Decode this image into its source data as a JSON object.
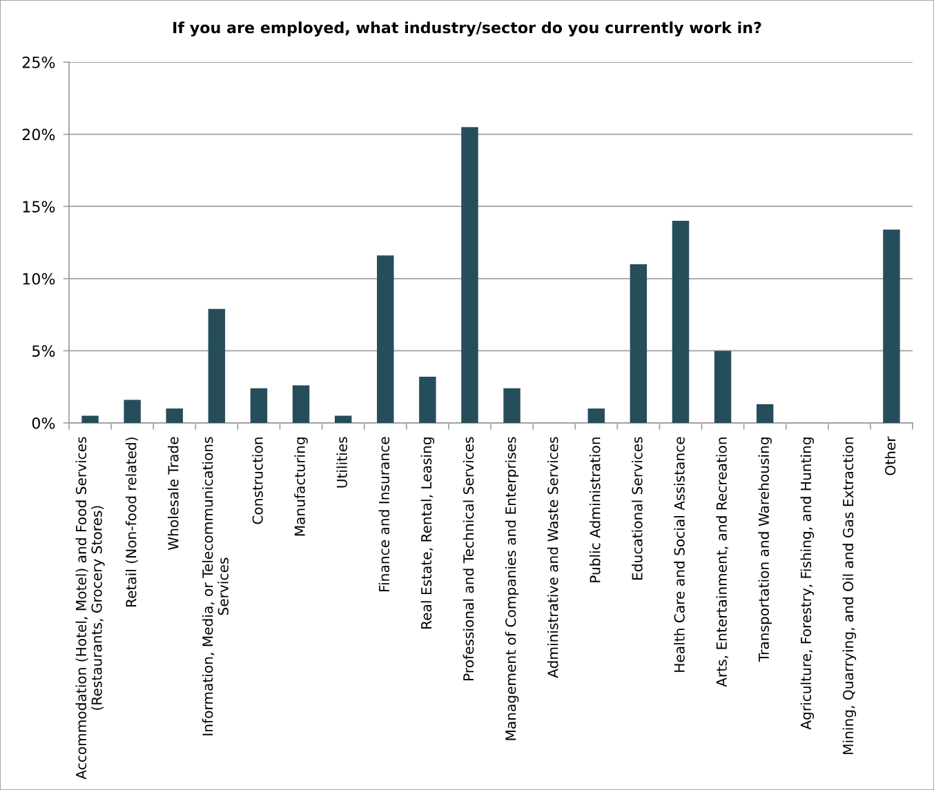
{
  "chart_data": {
    "type": "bar",
    "title": "If you are employed, what industry/sector do you currently work in?",
    "categories": [
      "Accommodation (Hotel, Motel) and Food Services\n(Restaurants, Grocery Stores)",
      "Retail (Non-food related)",
      "Wholesale Trade",
      "Information, Media, or Telecommunications\nServices",
      "Construction",
      "Manufacturing",
      "Utilities",
      "Finance and Insurance",
      "Real Estate, Rental, Leasing",
      "Professional and Technical Services",
      "Management of Companies and Enterprises",
      "Administrative and Waste Services",
      "Public Administration",
      "Educational Services",
      "Health Care and Social Assistance",
      "Arts, Entertainment, and Recreation",
      "Transportation and Warehousing",
      "Agriculture, Forestry, Fishing, and Hunting",
      "Mining, Quarrying, and Oil and Gas Extraction",
      "Other"
    ],
    "values": [
      0.5,
      1.6,
      1.0,
      7.9,
      2.4,
      2.6,
      0.5,
      11.6,
      3.2,
      20.5,
      2.4,
      0,
      1.0,
      11.0,
      14.0,
      5.0,
      1.3,
      0,
      0,
      13.4
    ],
    "color": "#264d5a",
    "ylim": [
      0,
      25
    ],
    "yticks": [
      {
        "value": 0,
        "label": "0%"
      },
      {
        "value": 5,
        "label": "5%"
      },
      {
        "value": 10,
        "label": "10%"
      },
      {
        "value": 15,
        "label": "15%"
      },
      {
        "value": 20,
        "label": "20%"
      },
      {
        "value": 25,
        "label": "25%"
      }
    ],
    "grid": "y"
  }
}
